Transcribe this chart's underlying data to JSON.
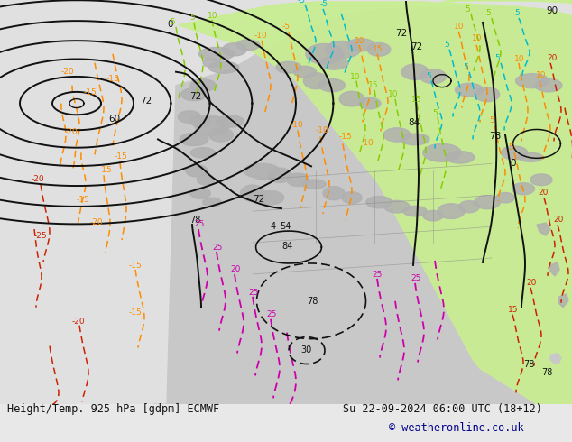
{
  "title_left": "Height/Temp. 925 hPa [gdpm] ECMWF",
  "title_right": "Su 22-09-2024 06:00 UTC (18+12)",
  "copyright": "© weatheronline.co.uk",
  "bg_color": "#e8e8e8",
  "light_green": "#c8ee90",
  "gray_land": "#b0b0b0",
  "footer_color": "#111111",
  "copyright_color": "#00008b",
  "orange_color": "#ff8c00",
  "red_color": "#cc2200",
  "magenta_color": "#cc00aa",
  "cyan_color": "#00bbcc",
  "lime_color": "#88cc00",
  "fig_width": 6.34,
  "fig_height": 4.9,
  "dpi": 100
}
